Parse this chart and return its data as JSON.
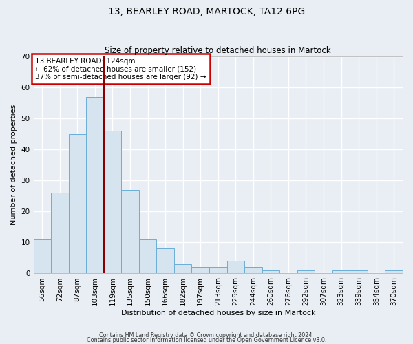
{
  "title": "13, BEARLEY ROAD, MARTOCK, TA12 6PG",
  "subtitle": "Size of property relative to detached houses in Martock",
  "xlabel": "Distribution of detached houses by size in Martock",
  "ylabel": "Number of detached properties",
  "bar_values": [
    11,
    26,
    45,
    57,
    46,
    27,
    11,
    8,
    3,
    2,
    2,
    4,
    2,
    1,
    0,
    1,
    0,
    1,
    1,
    0,
    1
  ],
  "categories": [
    "56sqm",
    "72sqm",
    "87sqm",
    "103sqm",
    "119sqm",
    "135sqm",
    "150sqm",
    "166sqm",
    "182sqm",
    "197sqm",
    "213sqm",
    "229sqm",
    "244sqm",
    "260sqm",
    "276sqm",
    "292sqm",
    "307sqm",
    "323sqm",
    "339sqm",
    "354sqm",
    "370sqm"
  ],
  "bar_color": "#d6e4f0",
  "bar_edge_color": "#6aaed6",
  "annotation_box_text": "13 BEARLEY ROAD: 124sqm\n← 62% of detached houses are smaller (152)\n37% of semi-detached houses are larger (92) →",
  "annotation_box_color": "white",
  "annotation_box_edge_color": "#cc0000",
  "vline_x": 3.5,
  "vline_color": "#8b0000",
  "ylim": [
    0,
    70
  ],
  "yticks": [
    0,
    10,
    20,
    30,
    40,
    50,
    60,
    70
  ],
  "footer_line1": "Contains HM Land Registry data © Crown copyright and database right 2024.",
  "footer_line2": "Contains public sector information licensed under the Open Government Licence v3.0.",
  "background_color": "#e8eef4",
  "plot_bg_color": "#e8eef4",
  "grid_color": "#ffffff",
  "title_fontsize": 10,
  "subtitle_fontsize": 8.5,
  "ylabel_fontsize": 8,
  "xlabel_fontsize": 8,
  "tick_fontsize": 7.5
}
